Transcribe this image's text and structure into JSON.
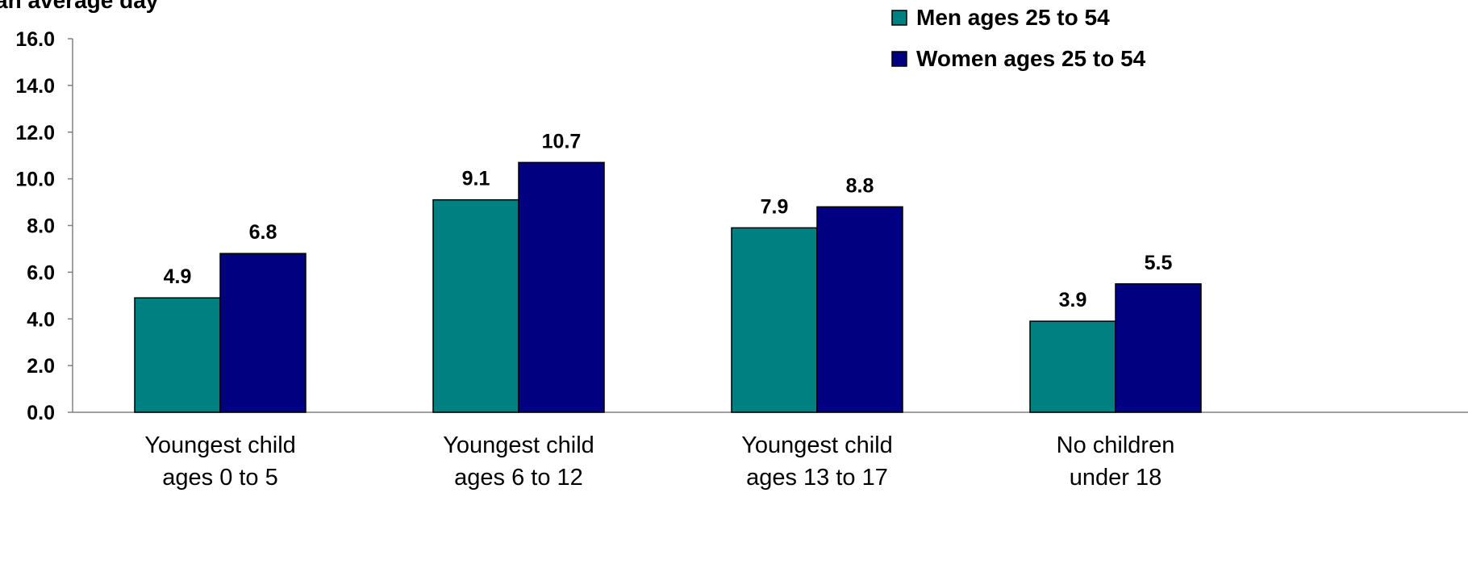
{
  "chart_data": {
    "type": "bar",
    "title": "",
    "ylabel": "an average day",
    "xlabel": "",
    "categories": [
      [
        "Youngest child",
        "ages 0 to 5"
      ],
      [
        "Youngest child",
        "ages 6 to 12"
      ],
      [
        "Youngest child",
        "ages 13 to 17"
      ],
      [
        "No children",
        "under 18"
      ]
    ],
    "series": [
      {
        "name": "Men ages 25 to 54",
        "values": [
          4.9,
          9.1,
          7.9,
          3.9
        ],
        "labels": [
          "4.9",
          "9.1",
          "7.9",
          "3.9"
        ],
        "color": "#008080"
      },
      {
        "name": "Women ages 25 to 54",
        "values": [
          6.8,
          10.7,
          8.8,
          5.5
        ],
        "labels": [
          "6.8",
          "10.7",
          "8.8",
          "5.5"
        ],
        "color": "#000080"
      }
    ],
    "ylim": [
      0,
      16
    ],
    "yticks": [
      0,
      2,
      4,
      6,
      8,
      10,
      12,
      14,
      16
    ],
    "ytick_labels": [
      "0.0",
      "2.0",
      "4.0",
      "6.0",
      "8.0",
      "10.0",
      "12.0",
      "14.0",
      "16.0"
    ],
    "grid": false,
    "legend": "top-right"
  }
}
